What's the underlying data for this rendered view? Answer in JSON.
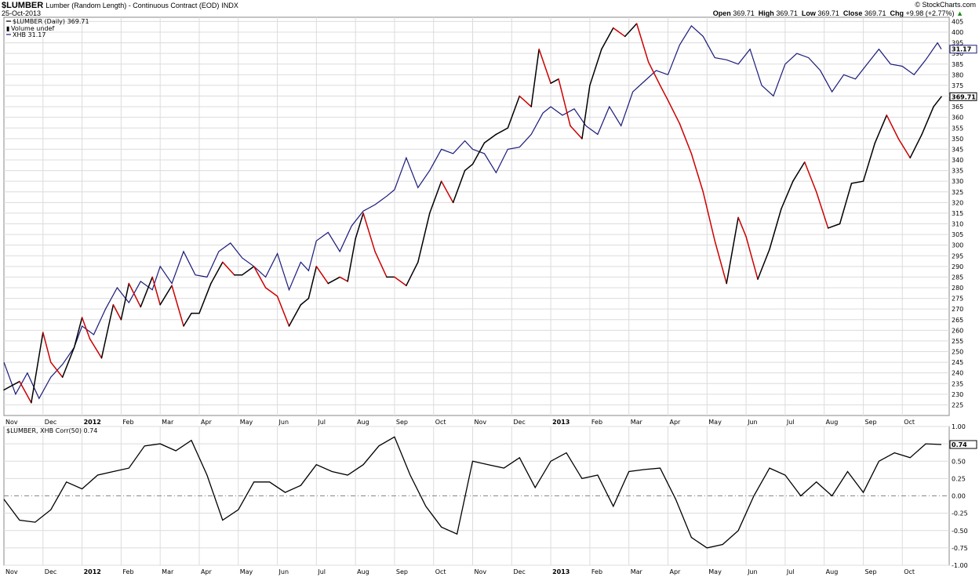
{
  "header": {
    "symbol": "$LUMBER",
    "title": "Lumber (Random Length) - Continuous Contract (EOD)",
    "exchange": "INDX",
    "date": "25-Oct-2013",
    "copyright": "© StockCharts.com",
    "open_label": "Open",
    "open": "369.71",
    "high_label": "High",
    "high": "369.71",
    "low_label": "Low",
    "low": "369.71",
    "close_label": "Close",
    "close": "369.71",
    "chg_label": "Chg",
    "chg": "+9.98 (+2.77%)",
    "chg_arrow": "▲"
  },
  "colors": {
    "lumber_up": "#000000",
    "lumber_down": "#cc0000",
    "xhb": "#1a1a7a",
    "grid": "#dcdcdc",
    "zero_line": "#888888"
  },
  "chart_data": [
    {
      "type": "line",
      "panel": "price",
      "legend": [
        {
          "label": "$LUMBER (Daily) 369.71"
        },
        {
          "label": "Volume undef"
        },
        {
          "label": "XHB 31.17"
        }
      ],
      "x_ticks": [
        "Nov",
        "Dec",
        "2012",
        "Feb",
        "Mar",
        "Apr",
        "May",
        "Jun",
        "Jul",
        "Aug",
        "Sep",
        "Oct",
        "Nov",
        "Dec",
        "2013",
        "Feb",
        "Mar",
        "Apr",
        "May",
        "Jun",
        "Jul",
        "Aug",
        "Sep",
        "Oct"
      ],
      "x_tick_bold": [
        "2012",
        "2013"
      ],
      "y_ticks": [
        225,
        230,
        235,
        240,
        245,
        250,
        255,
        260,
        265,
        270,
        275,
        280,
        285,
        290,
        295,
        300,
        305,
        310,
        315,
        320,
        325,
        330,
        335,
        340,
        345,
        350,
        355,
        360,
        365,
        370,
        375,
        380,
        385,
        390,
        395,
        400,
        405
      ],
      "ylim": [
        220,
        407
      ],
      "xlim": [
        0,
        24.2
      ],
      "last_value_label": "369.71",
      "xhb_last_label": "31.17",
      "series": [
        {
          "name": "$LUMBER",
          "x": [
            0,
            0.4,
            0.7,
            1.0,
            1.2,
            1.5,
            1.8,
            2.0,
            2.2,
            2.5,
            2.8,
            3.0,
            3.2,
            3.5,
            3.8,
            4.0,
            4.3,
            4.6,
            4.8,
            5.0,
            5.3,
            5.6,
            5.9,
            6.1,
            6.4,
            6.7,
            7.0,
            7.3,
            7.6,
            7.8,
            8.0,
            8.3,
            8.6,
            8.8,
            9.0,
            9.2,
            9.5,
            9.8,
            10.0,
            10.3,
            10.6,
            10.9,
            11.2,
            11.5,
            11.8,
            12.0,
            12.3,
            12.6,
            12.9,
            13.2,
            13.5,
            13.7,
            14.0,
            14.2,
            14.5,
            14.8,
            15.0,
            15.3,
            15.6,
            15.9,
            16.2,
            16.5,
            16.8,
            17.0,
            17.3,
            17.6,
            17.9,
            18.2,
            18.5,
            18.8,
            19.0,
            19.3,
            19.6,
            19.9,
            20.2,
            20.5,
            20.8,
            21.1,
            21.4,
            21.7,
            22.0,
            22.3,
            22.6,
            22.9,
            23.2,
            23.5,
            23.8,
            24.0
          ],
          "values": [
            232,
            236,
            226,
            259,
            245,
            238,
            252,
            266,
            256,
            247,
            272,
            265,
            282,
            271,
            285,
            272,
            281,
            262,
            268,
            268,
            282,
            292,
            286,
            286,
            290,
            280,
            276,
            262,
            272,
            275,
            290,
            282,
            285,
            283,
            303,
            315,
            297,
            285,
            285,
            281,
            292,
            315,
            330,
            320,
            335,
            338,
            348,
            352,
            355,
            370,
            365,
            392,
            376,
            378,
            356,
            350,
            375,
            392,
            402,
            398,
            404,
            386,
            375,
            368,
            357,
            343,
            325,
            302,
            282,
            313,
            304,
            284,
            298,
            317,
            330,
            339,
            325,
            308,
            310,
            329,
            330,
            348,
            361,
            350,
            341,
            352,
            365,
            369.71
          ]
        },
        {
          "name": "XHB",
          "x": [
            0,
            0.3,
            0.6,
            0.9,
            1.2,
            1.5,
            1.8,
            2.0,
            2.3,
            2.6,
            2.9,
            3.2,
            3.5,
            3.8,
            4.0,
            4.3,
            4.6,
            4.9,
            5.2,
            5.5,
            5.8,
            6.1,
            6.4,
            6.7,
            7.0,
            7.3,
            7.6,
            7.8,
            8.0,
            8.3,
            8.6,
            8.9,
            9.2,
            9.5,
            9.8,
            10.0,
            10.3,
            10.6,
            10.9,
            11.2,
            11.5,
            11.8,
            12.0,
            12.3,
            12.6,
            12.9,
            13.2,
            13.5,
            13.8,
            14.0,
            14.3,
            14.6,
            14.9,
            15.2,
            15.5,
            15.8,
            16.1,
            16.4,
            16.7,
            17.0,
            17.3,
            17.6,
            17.9,
            18.2,
            18.5,
            18.8,
            19.1,
            19.4,
            19.7,
            20.0,
            20.3,
            20.6,
            20.9,
            21.2,
            21.5,
            21.8,
            22.1,
            22.4,
            22.7,
            23.0,
            23.3,
            23.6,
            23.9,
            24.0
          ],
          "values": [
            245,
            230,
            240,
            228,
            238,
            244,
            252,
            262,
            258,
            270,
            280,
            273,
            283,
            279,
            290,
            282,
            297,
            286,
            285,
            297,
            301,
            294,
            290,
            285,
            296,
            279,
            292,
            288,
            302,
            306,
            297,
            309,
            316,
            319,
            323,
            326,
            341,
            327,
            335,
            345,
            343,
            349,
            345,
            343,
            334,
            345,
            346,
            352,
            362,
            365,
            361,
            364,
            356,
            352,
            365,
            356,
            372,
            377,
            382,
            380,
            394,
            403,
            398,
            388,
            387,
            385,
            392,
            375,
            370,
            385,
            390,
            388,
            382,
            372,
            380,
            378,
            385,
            392,
            385,
            384,
            380,
            387,
            395,
            392
          ]
        }
      ]
    },
    {
      "type": "line",
      "panel": "correlation",
      "title": "$LUMBER, XHB Corr(50) 0.74",
      "x_ticks": [
        "Nov",
        "Dec",
        "2012",
        "Feb",
        "Mar",
        "Apr",
        "May",
        "Jun",
        "Jul",
        "Aug",
        "Sep",
        "Oct",
        "Nov",
        "Dec",
        "2013",
        "Feb",
        "Mar",
        "Apr",
        "May",
        "Jun",
        "Jul",
        "Aug",
        "Sep",
        "Oct"
      ],
      "y_ticks": [
        "1.00",
        "0.75",
        "0.50",
        "0.25",
        "0.00",
        "-0.25",
        "-0.50",
        "-0.75",
        "-1.00"
      ],
      "ylim": [
        -1.0,
        1.0
      ],
      "xlim": [
        0,
        24.2
      ],
      "last_value_label": "0.74",
      "series": [
        {
          "name": "Corr(50)",
          "x": [
            0,
            0.4,
            0.8,
            1.2,
            1.6,
            2.0,
            2.4,
            2.8,
            3.2,
            3.6,
            4.0,
            4.4,
            4.8,
            5.2,
            5.6,
            6.0,
            6.4,
            6.8,
            7.2,
            7.6,
            8.0,
            8.4,
            8.8,
            9.2,
            9.6,
            10.0,
            10.4,
            10.8,
            11.2,
            11.6,
            12.0,
            12.4,
            12.8,
            13.2,
            13.6,
            14.0,
            14.4,
            14.8,
            15.2,
            15.6,
            16.0,
            16.4,
            16.8,
            17.2,
            17.6,
            18.0,
            18.4,
            18.8,
            19.2,
            19.6,
            20.0,
            20.4,
            20.8,
            21.2,
            21.6,
            22.0,
            22.4,
            22.8,
            23.2,
            23.6,
            24.0
          ],
          "values": [
            -0.05,
            -0.35,
            -0.38,
            -0.2,
            0.2,
            0.1,
            0.3,
            0.35,
            0.4,
            0.72,
            0.75,
            0.65,
            0.8,
            0.3,
            -0.35,
            -0.2,
            0.2,
            0.2,
            0.05,
            0.15,
            0.45,
            0.35,
            0.3,
            0.45,
            0.72,
            0.85,
            0.3,
            -0.15,
            -0.45,
            -0.55,
            0.5,
            0.45,
            0.4,
            0.55,
            0.12,
            0.5,
            0.62,
            0.25,
            0.3,
            -0.15,
            0.35,
            0.38,
            0.4,
            -0.05,
            -0.6,
            -0.75,
            -0.7,
            -0.5,
            0.0,
            0.4,
            0.3,
            0.0,
            0.2,
            0.0,
            0.35,
            0.05,
            0.5,
            0.62,
            0.55,
            0.75,
            0.74
          ]
        }
      ]
    }
  ]
}
